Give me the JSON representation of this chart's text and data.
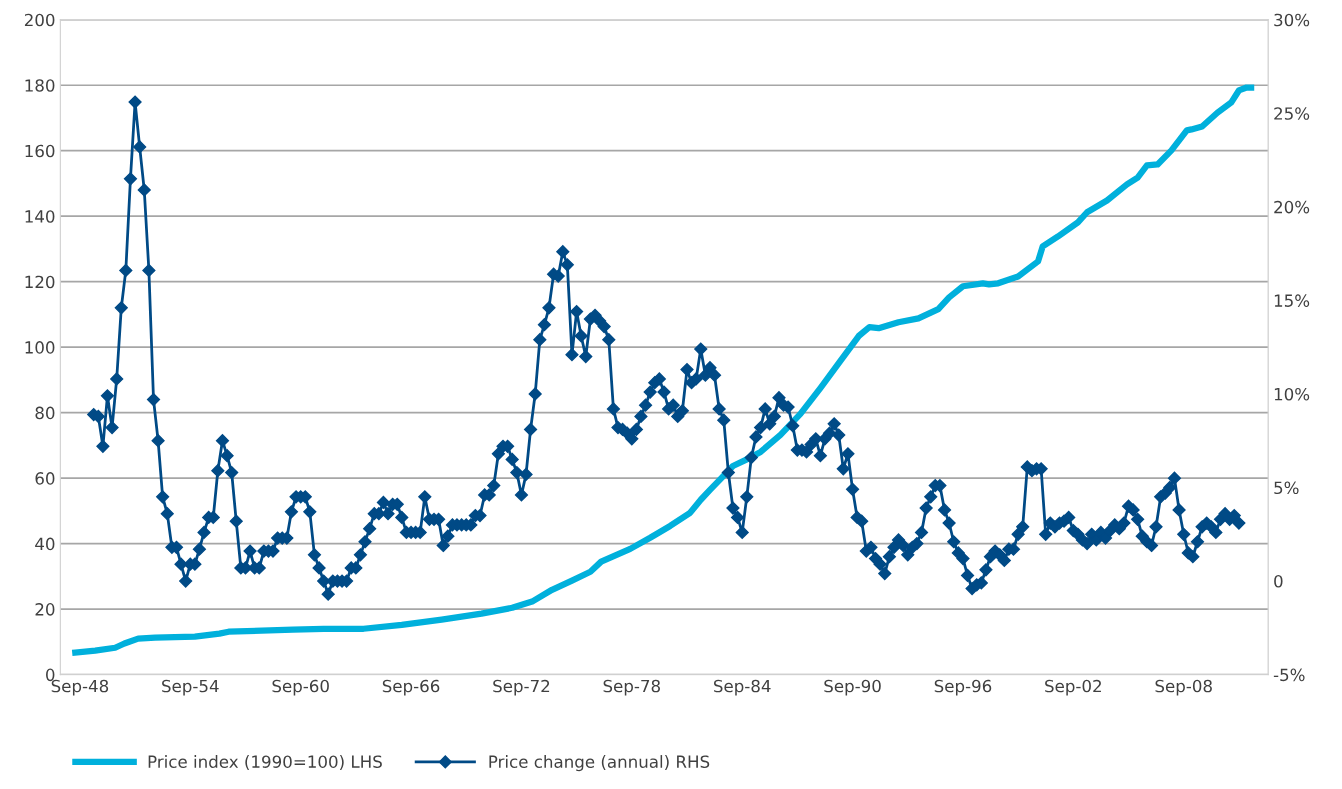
{
  "chart_data": {
    "type": "line",
    "xlim": [
      "1947-08-10",
      "2013-04-05"
    ],
    "xticks": [
      {
        "value": "1948-09",
        "label": "Sep-48"
      },
      {
        "value": "1954-09",
        "label": "Sep-54"
      },
      {
        "value": "1960-09",
        "label": "Sep-60"
      },
      {
        "value": "1966-09",
        "label": "Sep-66"
      },
      {
        "value": "1972-09",
        "label": "Sep-72"
      },
      {
        "value": "1978-09",
        "label": "Sep-78"
      },
      {
        "value": "1984-09",
        "label": "Sep-84"
      },
      {
        "value": "1990-09",
        "label": "Sep-90"
      },
      {
        "value": "1996-09",
        "label": "Sep-96"
      },
      {
        "value": "2002-09",
        "label": "Sep-02"
      },
      {
        "value": "2008-09",
        "label": "Sep-08"
      }
    ],
    "ylim": [
      0,
      200
    ],
    "yticks": [
      0,
      20,
      40,
      60,
      80,
      100,
      120,
      140,
      160,
      180,
      200
    ],
    "y2lim": [
      -5,
      30
    ],
    "y2ticks": [
      {
        "value": -5,
        "label": "-5%"
      },
      {
        "value": 0,
        "label": "0"
      },
      {
        "value": 5,
        "label": "5%"
      },
      {
        "value": 10,
        "label": "10%"
      },
      {
        "value": 15,
        "label": "15%"
      },
      {
        "value": 20,
        "label": "20%"
      },
      {
        "value": 25,
        "label": "25%"
      },
      {
        "value": 30,
        "label": "30%"
      }
    ],
    "grid": "y",
    "legend": "bottom",
    "line_style": "solid",
    "series": [
      {
        "name": "Price index (1990=100) LHS",
        "color": "#00b0dc",
        "marker": "none",
        "axis": "y",
        "x": [
          "1948-06",
          "1949-07",
          "1950-08",
          "1951-02",
          "1951-11",
          "1952-10",
          "1954-12",
          "1956-04",
          "1956-10",
          "1960-04",
          "1961-12",
          "1964-02",
          "1966-03",
          "1968-05",
          "1970-07",
          "1972-03",
          "1973-04",
          "1974-05",
          "1975-06",
          "1976-06",
          "1977-01",
          "1978-08",
          "1979-09",
          "1980-10",
          "1981-11",
          "1982-06",
          "1982-12",
          "1983-07",
          "1984-03",
          "1984-11",
          "1985-09",
          "1986-10",
          "1987-11",
          "1988-12",
          "1989-12",
          "1991-01",
          "1991-08",
          "1992-02",
          "1993-03",
          "1994-04",
          "1995-05",
          "1995-12",
          "1996-09",
          "1997-10",
          "1998-02",
          "1998-08",
          "1999-09",
          "2000-10",
          "2001-01",
          "2001-11",
          "2002-12",
          "2003-06",
          "2004-07",
          "2005-08",
          "2006-03",
          "2006-09",
          "2007-04",
          "2008-01",
          "2008-11",
          "2009-02",
          "2009-09",
          "2010-07",
          "2011-04",
          "2011-09",
          "2012-02",
          "2012-05"
        ],
        "values": [
          6.7,
          7.3,
          8.2,
          9.5,
          11.0,
          11.3,
          11.6,
          12.5,
          13.1,
          13.7,
          14.0,
          14.0,
          15.2,
          16.8,
          18.6,
          20.4,
          22.3,
          25.9,
          28.7,
          31.4,
          34.5,
          38.4,
          41.8,
          45.4,
          49.4,
          53.4,
          56.4,
          59.8,
          63.7,
          65.5,
          68.0,
          73.2,
          79.6,
          87.5,
          95.1,
          103.4,
          106.1,
          105.8,
          107.6,
          108.8,
          111.6,
          115.2,
          118.6,
          119.5,
          119.2,
          119.5,
          121.6,
          126.2,
          130.8,
          133.8,
          138.1,
          141.2,
          144.8,
          149.7,
          151.8,
          155.5,
          155.8,
          160.1,
          166.2,
          166.5,
          167.4,
          171.6,
          174.7,
          178.4,
          179.3,
          179.3
        ]
      },
      {
        "name": "Price change (annual) RHS",
        "color": "#004a86",
        "marker": "diamond",
        "axis": "y2",
        "x": [
          "1949-06",
          "1949-09",
          "1949-12",
          "1950-03",
          "1950-06",
          "1950-09",
          "1950-12",
          "1951-03",
          "1951-06",
          "1951-09",
          "1951-12",
          "1952-03",
          "1952-06",
          "1952-09",
          "1952-12",
          "1953-03",
          "1953-06",
          "1953-09",
          "1953-12",
          "1954-03",
          "1954-06",
          "1954-09",
          "1954-12",
          "1955-03",
          "1955-06",
          "1955-09",
          "1955-12",
          "1956-03",
          "1956-06",
          "1956-09",
          "1956-12",
          "1957-03",
          "1957-06",
          "1957-09",
          "1957-12",
          "1958-03",
          "1958-06",
          "1958-09",
          "1958-12",
          "1959-03",
          "1959-06",
          "1959-09",
          "1959-12",
          "1960-03",
          "1960-06",
          "1960-09",
          "1960-12",
          "1961-03",
          "1961-06",
          "1961-09",
          "1961-12",
          "1962-03",
          "1962-06",
          "1962-09",
          "1962-12",
          "1963-03",
          "1963-06",
          "1963-09",
          "1963-12",
          "1964-03",
          "1964-06",
          "1964-09",
          "1964-12",
          "1965-03",
          "1965-06",
          "1965-09",
          "1965-12",
          "1966-03",
          "1966-06",
          "1966-09",
          "1966-12",
          "1967-03",
          "1967-06",
          "1967-09",
          "1967-12",
          "1968-03",
          "1968-06",
          "1968-09",
          "1968-12",
          "1969-03",
          "1969-06",
          "1969-09",
          "1969-12",
          "1970-03",
          "1970-06",
          "1970-09",
          "1970-12",
          "1971-03",
          "1971-06",
          "1971-09",
          "1971-12",
          "1972-03",
          "1972-06",
          "1972-09",
          "1972-12",
          "1973-03",
          "1973-06",
          "1973-09",
          "1973-12",
          "1974-03",
          "1974-06",
          "1974-09",
          "1974-12",
          "1975-03",
          "1975-06",
          "1975-09",
          "1975-12",
          "1976-03",
          "1976-06",
          "1976-09",
          "1976-12",
          "1977-03",
          "1977-06",
          "1977-09",
          "1977-12",
          "1978-03",
          "1978-06",
          "1978-09",
          "1978-12",
          "1979-03",
          "1979-06",
          "1979-09",
          "1979-12",
          "1980-03",
          "1980-06",
          "1980-09",
          "1980-12",
          "1981-03",
          "1981-06",
          "1981-09",
          "1981-12",
          "1982-03",
          "1982-06",
          "1982-09",
          "1982-12",
          "1983-03",
          "1983-06",
          "1983-09",
          "1983-12",
          "1984-03",
          "1984-06",
          "1984-09",
          "1984-12",
          "1985-03",
          "1985-06",
          "1985-09",
          "1985-12",
          "1986-03",
          "1986-06",
          "1986-09",
          "1986-12",
          "1987-03",
          "1987-06",
          "1987-09",
          "1987-12",
          "1988-03",
          "1988-06",
          "1988-09",
          "1988-12",
          "1989-03",
          "1989-06",
          "1989-09",
          "1989-12",
          "1990-03",
          "1990-06",
          "1990-09",
          "1990-12",
          "1991-03",
          "1991-06",
          "1991-09",
          "1991-12",
          "1992-03",
          "1992-06",
          "1992-09",
          "1992-12",
          "1993-03",
          "1993-06",
          "1993-09",
          "1993-12",
          "1994-03",
          "1994-06",
          "1994-09",
          "1994-12",
          "1995-03",
          "1995-06",
          "1995-09",
          "1995-12",
          "1996-03",
          "1996-06",
          "1996-09",
          "1996-12",
          "1997-03",
          "1997-06",
          "1997-09",
          "1997-12",
          "1998-03",
          "1998-06",
          "1998-09",
          "1998-12",
          "1999-03",
          "1999-06",
          "1999-09",
          "1999-12",
          "2000-03",
          "2000-06",
          "2000-09",
          "2000-12",
          "2001-03",
          "2001-06",
          "2001-09",
          "2001-12",
          "2002-03",
          "2002-06",
          "2002-09",
          "2002-12",
          "2003-03",
          "2003-06",
          "2003-09",
          "2003-12",
          "2004-03",
          "2004-06",
          "2004-09",
          "2004-12",
          "2005-03",
          "2005-06",
          "2005-09",
          "2005-12",
          "2006-03",
          "2006-06",
          "2006-09",
          "2006-12",
          "2007-03",
          "2007-06",
          "2007-09",
          "2007-12",
          "2008-03",
          "2008-06",
          "2008-09",
          "2008-12",
          "2009-03",
          "2009-06",
          "2009-09",
          "2009-12",
          "2010-03",
          "2010-06",
          "2010-09",
          "2010-12",
          "2011-03",
          "2011-06",
          "2011-09"
        ],
        "values": [
          8.9,
          8.8,
          7.2,
          9.9,
          8.2,
          10.8,
          14.6,
          16.6,
          21.5,
          25.6,
          23.2,
          20.9,
          16.6,
          9.7,
          7.5,
          4.5,
          3.6,
          1.8,
          1.8,
          0.9,
          0.0,
          0.9,
          0.9,
          1.7,
          2.6,
          3.4,
          3.4,
          5.9,
          7.5,
          6.7,
          5.8,
          3.2,
          0.7,
          0.7,
          1.6,
          0.7,
          0.7,
          1.6,
          1.6,
          1.6,
          2.3,
          2.3,
          2.3,
          3.7,
          4.5,
          4.5,
          4.5,
          3.7,
          1.4,
          0.7,
          0.0,
          -0.7,
          0.0,
          0.0,
          0.0,
          0.0,
          0.7,
          0.7,
          1.4,
          2.1,
          2.8,
          3.6,
          3.6,
          4.2,
          3.6,
          4.1,
          4.1,
          3.4,
          2.6,
          2.6,
          2.6,
          2.6,
          4.5,
          3.3,
          3.3,
          3.3,
          1.9,
          2.4,
          3.0,
          3.0,
          3.0,
          3.0,
          3.0,
          3.5,
          3.5,
          4.6,
          4.6,
          5.1,
          6.8,
          7.2,
          7.2,
          6.5,
          5.8,
          4.6,
          5.7,
          8.1,
          10.0,
          12.9,
          13.7,
          14.6,
          16.4,
          16.3,
          17.6,
          16.9,
          12.1,
          14.4,
          13.1,
          12.0,
          14.0,
          14.2,
          13.9,
          13.6,
          12.9,
          9.2,
          8.2,
          8.1,
          7.9,
          7.6,
          8.1,
          8.8,
          9.4,
          10.1,
          10.6,
          10.8,
          10.1,
          9.2,
          9.4,
          8.8,
          9.1,
          11.3,
          10.6,
          10.8,
          12.4,
          11.0,
          11.4,
          11.0,
          9.2,
          8.6,
          5.8,
          3.9,
          3.4,
          2.6,
          4.5,
          6.6,
          7.7,
          8.2,
          9.2,
          8.4,
          8.8,
          9.8,
          9.4,
          9.3,
          8.3,
          7.0,
          7.0,
          6.9,
          7.3,
          7.6,
          6.7,
          7.6,
          7.9,
          8.4,
          7.8,
          6.0,
          6.8,
          4.9,
          3.4,
          3.2,
          1.6,
          1.8,
          1.2,
          0.9,
          0.4,
          1.3,
          1.8,
          2.2,
          1.9,
          1.4,
          1.8,
          2.0,
          2.6,
          3.9,
          4.5,
          5.1,
          5.1,
          3.8,
          3.1,
          2.1,
          1.5,
          1.2,
          0.3,
          -0.4,
          -0.2,
          -0.1,
          0.6,
          1.3,
          1.6,
          1.4,
          1.1,
          1.7,
          1.7,
          2.5,
          2.9,
          6.1,
          5.9,
          6.0,
          6.0,
          2.5,
          3.1,
          2.9,
          3.1,
          3.2,
          3.4,
          2.7,
          2.5,
          2.2,
          2.0,
          2.5,
          2.2,
          2.6,
          2.3,
          2.7,
          3.0,
          2.8,
          3.1,
          4.0,
          3.8,
          3.3,
          2.4,
          2.1,
          1.9,
          2.9,
          4.5,
          4.7,
          5.0,
          5.5,
          3.8,
          2.5,
          1.5,
          1.3,
          2.1,
          2.9,
          3.1,
          2.9,
          2.6,
          3.3,
          3.6,
          3.3,
          3.5,
          3.1
        ]
      }
    ]
  }
}
